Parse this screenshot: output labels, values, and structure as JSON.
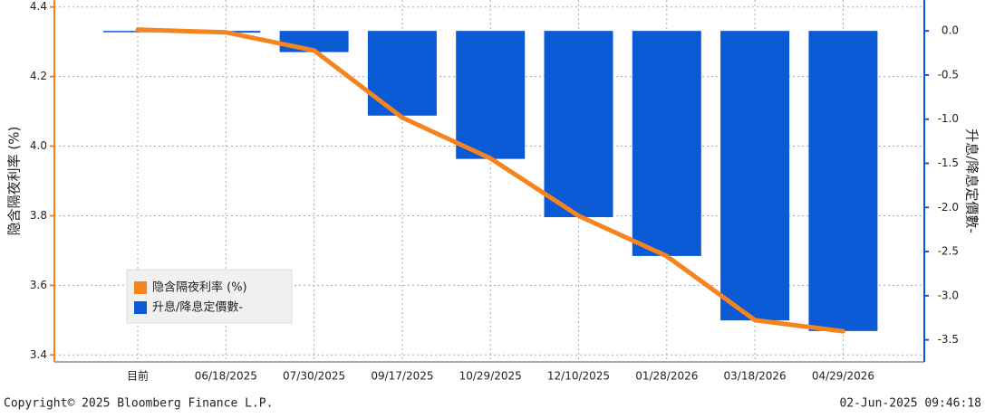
{
  "chart_data": {
    "type": "bar_line",
    "y_label": "隐含隔夜利率 (%)",
    "y2_label": "升息/降息定價數-",
    "categories": [
      "目前",
      "06/18/2025",
      "07/30/2025",
      "09/17/2025",
      "10/29/2025",
      "12/10/2025",
      "01/28/2026",
      "03/18/2026",
      "04/29/2026"
    ],
    "series": [
      {
        "name": "隐含隔夜利率 (%)",
        "kind": "line",
        "color": "#f5841f",
        "values": [
          4.335,
          4.327,
          4.275,
          4.082,
          3.965,
          3.8,
          3.684,
          3.5,
          3.468
        ]
      },
      {
        "name": "升息/降息定價數-",
        "kind": "bar",
        "axis": "y2",
        "color": "#0a5ad6",
        "values": [
          0,
          -0.02,
          -0.24,
          -0.96,
          -1.45,
          -2.11,
          -2.55,
          -3.28,
          -3.4
        ]
      }
    ],
    "ylim": [
      3.38,
      4.42
    ],
    "yticks": [
      {
        "value": 3.4,
        "label": "3.4"
      },
      {
        "value": 3.6,
        "label": "3.6"
      },
      {
        "value": 3.8,
        "label": "3.8"
      },
      {
        "value": 4,
        "label": "4.0"
      },
      {
        "value": 4.2,
        "label": "4.2"
      },
      {
        "value": 4.4,
        "label": "4.4"
      }
    ],
    "y2lim": [
      -3.75,
      0.35
    ],
    "y2ticks": [
      {
        "value": 0,
        "label": "0.0"
      },
      -0.5,
      {
        "value": -1,
        "label": "-1.0"
      },
      -1.5,
      {
        "value": -2,
        "label": "-2.0"
      },
      -2.5,
      {
        "value": -3,
        "label": "-3.0"
      },
      -3.5
    ],
    "grid": true,
    "legend": "lower left",
    "footer_left": "Copyright© 2025 Bloomberg Finance L.P.",
    "footer_right": "02-Jun-2025 09:46:18"
  }
}
